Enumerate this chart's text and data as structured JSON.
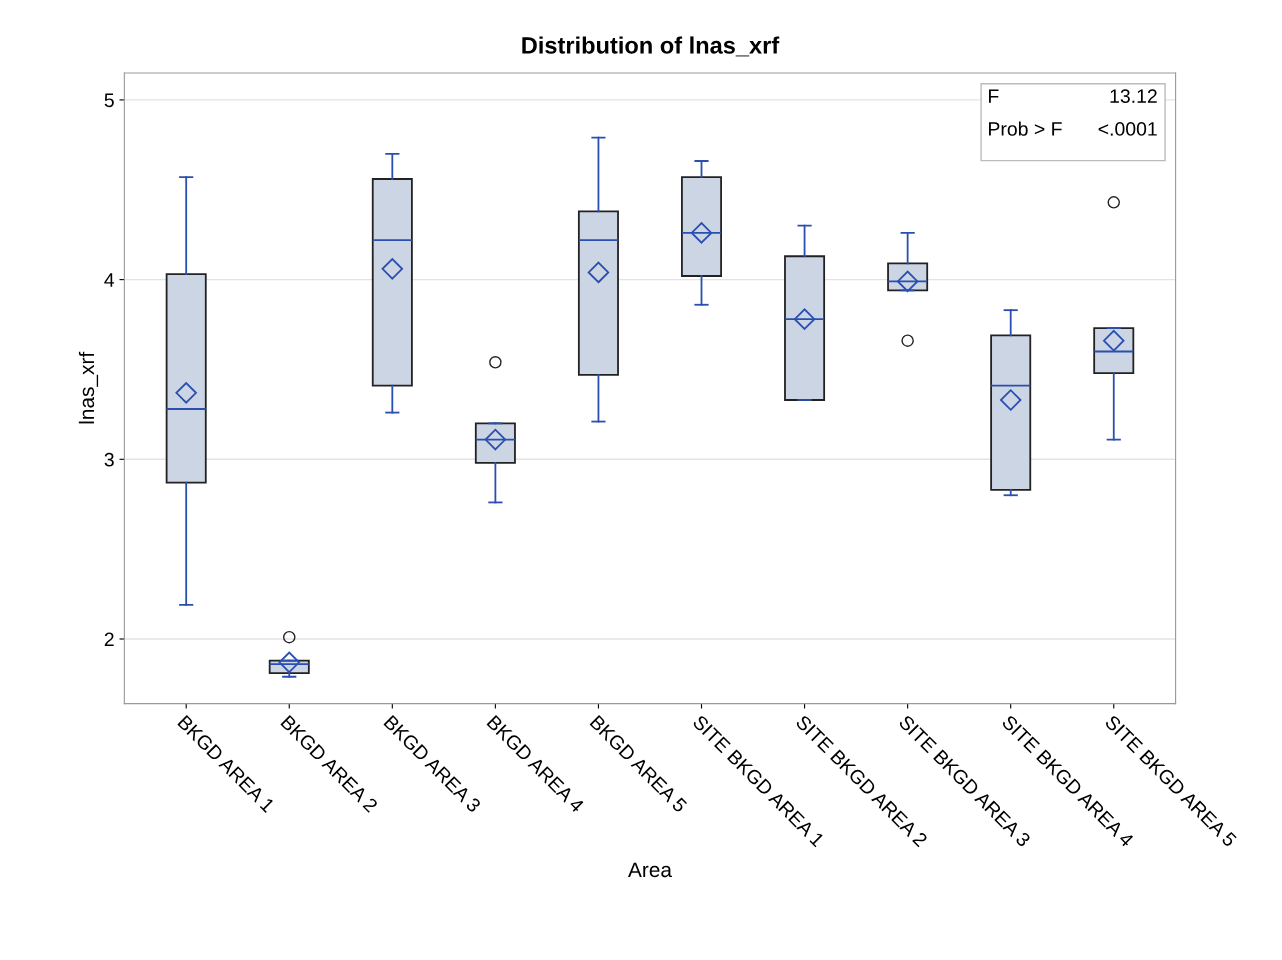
{
  "chart_data": {
    "type": "box",
    "title": "Distribution of lnas_xrf",
    "xlabel": "Area",
    "ylabel": "lnas_xrf",
    "categories": [
      "BKGD AREA 1",
      "BKGD AREA 2",
      "BKGD AREA 3",
      "BKGD AREA 4",
      "BKGD AREA 5",
      "SITE BKGD AREA 1",
      "SITE BKGD AREA 2",
      "SITE BKGD AREA 3",
      "SITE BKGD AREA 4",
      "SITE BKGD AREA 5"
    ],
    "boxes": [
      {
        "low": 2.19,
        "q1": 2.87,
        "median": 3.28,
        "q3": 4.03,
        "high": 4.57,
        "mean": 3.37
      },
      {
        "low": 1.79,
        "q1": 1.81,
        "median": 1.86,
        "q3": 1.88,
        "high": 1.88,
        "mean": 1.87,
        "outliers": [
          2.01
        ]
      },
      {
        "low": 3.26,
        "q1": 3.41,
        "median": 4.22,
        "q3": 4.56,
        "high": 4.7,
        "mean": 4.06
      },
      {
        "low": 2.76,
        "q1": 2.98,
        "median": 3.11,
        "q3": 3.2,
        "high": 3.2,
        "mean": 3.11,
        "outliers": [
          3.54
        ]
      },
      {
        "low": 3.21,
        "q1": 3.47,
        "median": 4.22,
        "q3": 4.38,
        "high": 4.79,
        "mean": 4.04
      },
      {
        "low": 3.86,
        "q1": 4.02,
        "median": 4.26,
        "q3": 4.57,
        "high": 4.66,
        "mean": 4.26
      },
      {
        "low": 3.33,
        "q1": 3.33,
        "median": 3.78,
        "q3": 4.13,
        "high": 4.3,
        "mean": 3.78
      },
      {
        "low": 3.94,
        "q1": 3.94,
        "median": 3.99,
        "q3": 4.09,
        "high": 4.26,
        "mean": 3.99,
        "outliers": [
          3.66
        ]
      },
      {
        "low": 2.8,
        "q1": 2.83,
        "median": 3.41,
        "q3": 3.69,
        "high": 3.83,
        "mean": 3.33
      },
      {
        "low": 3.11,
        "q1": 3.48,
        "median": 3.6,
        "q3": 3.73,
        "high": 3.73,
        "mean": 3.66,
        "outliers": [
          4.43
        ]
      }
    ],
    "color": "#cbd5e4",
    "ylim": [
      1.64,
      5.15
    ],
    "yticks": [
      2,
      3,
      4,
      5
    ],
    "grid": "y",
    "marker": "diamond",
    "annotations": [
      "F",
      "13.12",
      "Prob > F",
      "<.0001"
    ]
  }
}
